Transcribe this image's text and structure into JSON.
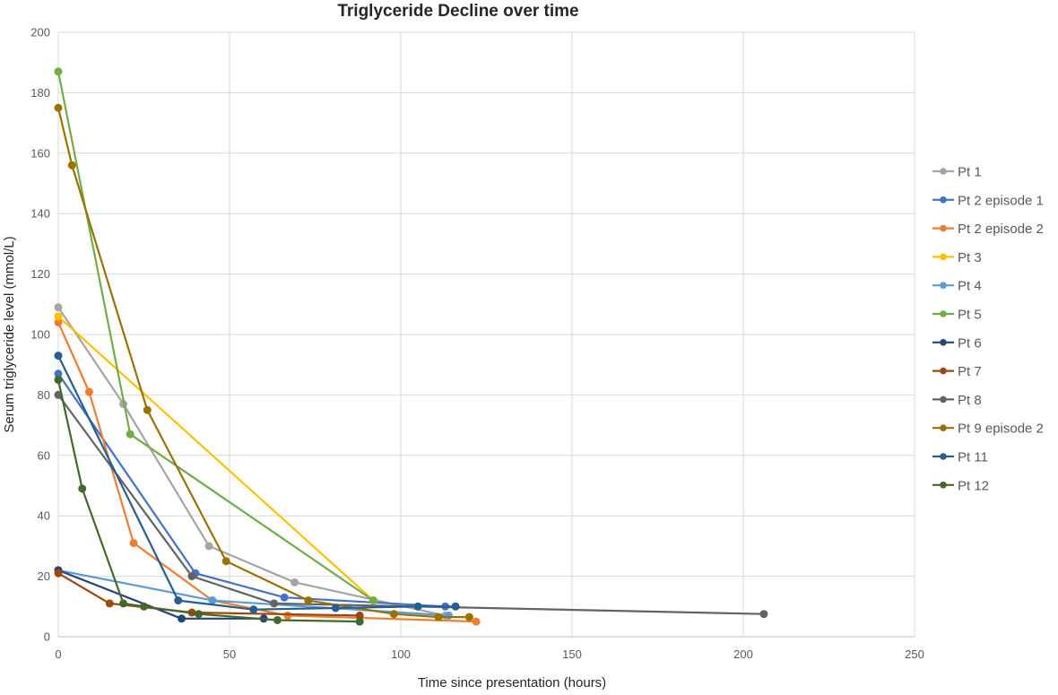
{
  "chart_data": {
    "type": "scatter",
    "title": "Triglyceride Decline over time",
    "xlabel": "Time since presentation (hours)",
    "ylabel": "Serum triglyceride level (mmol/L)",
    "xlim": [
      0,
      250
    ],
    "ylim": [
      0,
      200
    ],
    "xticks": [
      0,
      50,
      100,
      150,
      200,
      250
    ],
    "yticks": [
      0,
      20,
      40,
      60,
      80,
      100,
      120,
      140,
      160,
      180,
      200
    ],
    "xtick_labels": [
      "0",
      "50",
      "100",
      "150",
      "200",
      "250"
    ],
    "ytick_labels": [
      "0",
      "20",
      "40",
      "60",
      "80",
      "100",
      "120",
      "140",
      "160",
      "180",
      "200"
    ],
    "grid": true,
    "legend_position": "right",
    "markers": "lines-with-markers",
    "series": [
      {
        "name": "Pt 1",
        "color": "#a5a5a5",
        "points": [
          [
            0,
            109
          ],
          [
            19,
            77
          ],
          [
            44,
            30
          ],
          [
            69,
            18
          ],
          [
            113,
            7
          ]
        ]
      },
      {
        "name": "Pt 2 episode 1",
        "color": "#4472c4",
        "points": [
          [
            0,
            87
          ],
          [
            40,
            21
          ],
          [
            66,
            13
          ],
          [
            113,
            10
          ]
        ]
      },
      {
        "name": "Pt 2 episode 2",
        "color": "#ed7d31",
        "points": [
          [
            0,
            104
          ],
          [
            9,
            81
          ],
          [
            22,
            31
          ],
          [
            45,
            12
          ],
          [
            67,
            7
          ],
          [
            122,
            5
          ]
        ]
      },
      {
        "name": "Pt 3",
        "color": "#ffc000",
        "points": [
          [
            0,
            106
          ],
          [
            92,
            12
          ]
        ]
      },
      {
        "name": "Pt 4",
        "color": "#5b9bd5",
        "points": [
          [
            0,
            22
          ],
          [
            45,
            12
          ],
          [
            114,
            7
          ]
        ]
      },
      {
        "name": "Pt 5",
        "color": "#70ad47",
        "points": [
          [
            0,
            187
          ],
          [
            21,
            67
          ],
          [
            92,
            12
          ]
        ]
      },
      {
        "name": "Pt 6",
        "color": "#264478",
        "points": [
          [
            0,
            22
          ],
          [
            36,
            6
          ],
          [
            60,
            6
          ]
        ]
      },
      {
        "name": "Pt 7",
        "color": "#9e480e",
        "points": [
          [
            0,
            21
          ],
          [
            15,
            11
          ],
          [
            39,
            8
          ],
          [
            88,
            7
          ]
        ]
      },
      {
        "name": "Pt 8",
        "color": "#636363",
        "points": [
          [
            0,
            80
          ],
          [
            39,
            20
          ],
          [
            63,
            11
          ],
          [
            206,
            7.5
          ]
        ]
      },
      {
        "name": "Pt 9 episode 2",
        "color": "#997300",
        "points": [
          [
            0,
            175
          ],
          [
            4,
            156
          ],
          [
            26,
            75
          ],
          [
            49,
            25
          ],
          [
            73,
            12
          ],
          [
            98,
            7.5
          ],
          [
            111,
            6.5
          ],
          [
            120,
            6.5
          ]
        ]
      },
      {
        "name": "Pt 11",
        "color": "#255e91",
        "points": [
          [
            0,
            93
          ],
          [
            35,
            12
          ],
          [
            57,
            9
          ],
          [
            81,
            9.5
          ],
          [
            105,
            10
          ],
          [
            116,
            10
          ]
        ]
      },
      {
        "name": "Pt 12",
        "color": "#43682b",
        "points": [
          [
            0,
            85
          ],
          [
            7,
            49
          ],
          [
            19,
            11
          ],
          [
            25,
            10
          ],
          [
            41,
            7.5
          ],
          [
            64,
            5.5
          ],
          [
            88,
            5
          ]
        ]
      }
    ]
  }
}
